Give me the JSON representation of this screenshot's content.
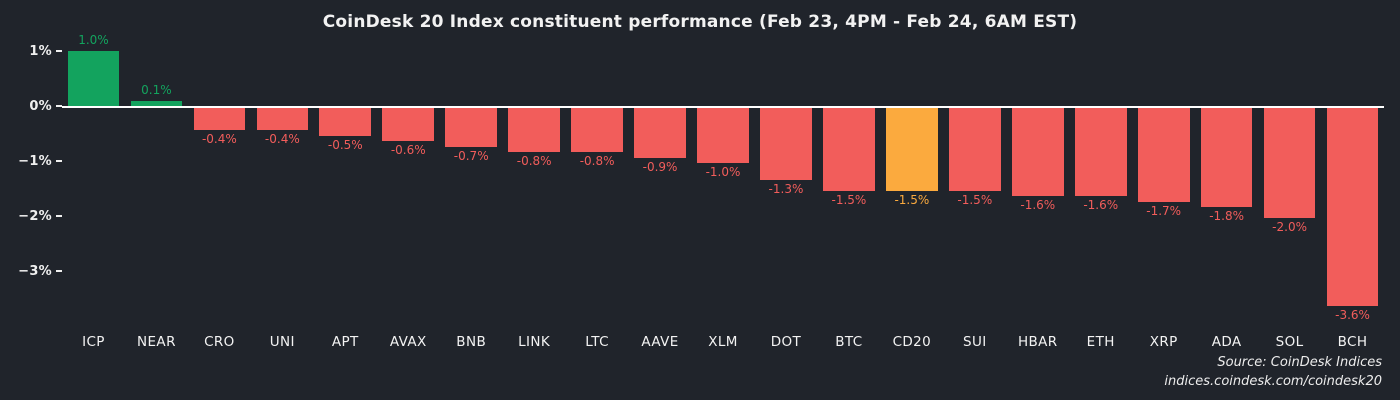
{
  "chart_data": {
    "type": "bar",
    "title": "CoinDesk 20 Index constituent performance (Feb 23, 4PM - Feb 24, 6AM EST)",
    "categories": [
      "ICP",
      "NEAR",
      "CRO",
      "UNI",
      "APT",
      "AVAX",
      "BNB",
      "LINK",
      "LTC",
      "AAVE",
      "XLM",
      "DOT",
      "BTC",
      "CD20",
      "SUI",
      "HBAR",
      "ETH",
      "XRP",
      "ADA",
      "SOL",
      "BCH"
    ],
    "values": [
      1.0,
      0.1,
      -0.4,
      -0.4,
      -0.5,
      -0.6,
      -0.7,
      -0.8,
      -0.8,
      -0.9,
      -1.0,
      -1.3,
      -1.5,
      -1.5,
      -1.5,
      -1.6,
      -1.6,
      -1.7,
      -1.8,
      -2.0,
      -3.6
    ],
    "value_labels": [
      "1.0%",
      "0.1%",
      "-0.4%",
      "-0.4%",
      "-0.5%",
      "-0.6%",
      "-0.7%",
      "-0.8%",
      "-0.8%",
      "-0.9%",
      "-1.0%",
      "-1.3%",
      "-1.5%",
      "-1.5%",
      "-1.5%",
      "-1.6%",
      "-1.6%",
      "-1.7%",
      "-1.8%",
      "-2.0%",
      "-3.6%"
    ],
    "highlight_category": "CD20",
    "y_ticks": [
      {
        "label": "1%",
        "value": 1
      },
      {
        "label": "0%",
        "value": 0
      },
      {
        "label": "−1%",
        "value": -1
      },
      {
        "label": "−2%",
        "value": -2
      },
      {
        "label": "−3%",
        "value": -3
      }
    ],
    "ylim": [
      -3.9,
      1.1
    ],
    "xlabel": "",
    "ylabel": "",
    "grid": false,
    "legend": false,
    "colors": {
      "positive": "#13a35e",
      "negative": "#f25d5b",
      "highlight": "#fbaa3e",
      "axis_line": "#ffffff"
    }
  },
  "source": {
    "line1": "Source: CoinDesk Indices",
    "line2": "indices.coindesk.com/coindesk20"
  }
}
